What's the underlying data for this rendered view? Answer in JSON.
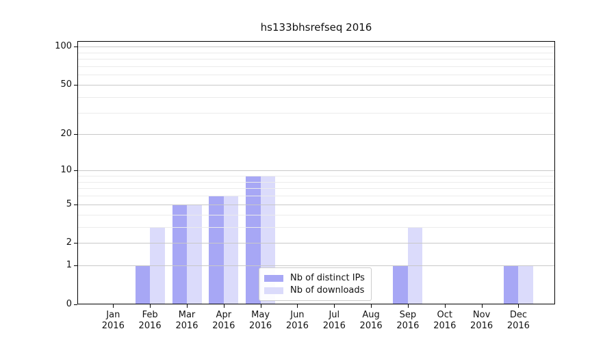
{
  "title": "hs133bhsrefseq 2016",
  "chart_data": {
    "type": "bar",
    "title": "hs133bhsrefseq 2016",
    "categories": [
      "Jan 2016",
      "Feb 2016",
      "Mar 2016",
      "Apr 2016",
      "May 2016",
      "Jun 2016",
      "Jul 2016",
      "Aug 2016",
      "Sep 2016",
      "Oct 2016",
      "Nov 2016",
      "Dec 2016"
    ],
    "series": [
      {
        "name": "Nb of distinct IPs",
        "color": "#a7a7f5",
        "values": [
          0,
          1,
          5,
          6,
          9,
          0,
          0,
          0,
          1,
          0,
          0,
          1
        ]
      },
      {
        "name": "Nb of downloads",
        "color": "#dbdbfb",
        "values": [
          0,
          3,
          5,
          6,
          9,
          0,
          0,
          0,
          3,
          0,
          0,
          1
        ]
      }
    ],
    "y_axis": {
      "scale": "log10(1+x)",
      "major_ticks": [
        0,
        1,
        2,
        5,
        10,
        20,
        50,
        100
      ],
      "minor_ticks": [
        3,
        4,
        6,
        7,
        8,
        9,
        30,
        40,
        60,
        70,
        80,
        90
      ],
      "ylim": [
        0,
        110
      ]
    },
    "xlabel": "",
    "ylabel": "",
    "grid": true,
    "grid_major_color": "#c8c8c8",
    "grid_minor_color": "#ebebeb",
    "spine_color": "#000000",
    "legend_position": "lower center",
    "legend_border_color": "#cccccc"
  }
}
